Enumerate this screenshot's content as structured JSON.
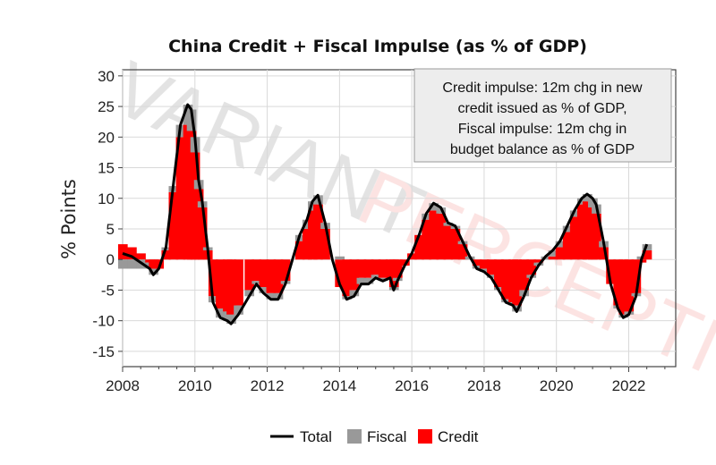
{
  "chart_data": {
    "type": "area",
    "title": "China Credit + Fiscal Impulse (as % of GDP)",
    "ylabel": "% Points",
    "xlabel": "",
    "xlim": [
      2008,
      2023.3
    ],
    "ylim": [
      -17.5,
      31
    ],
    "x_ticks": [
      2008,
      2010,
      2012,
      2014,
      2016,
      2018,
      2020,
      2022
    ],
    "x_tick_labels": [
      "2008",
      "2010",
      "2012",
      "2014",
      "2016",
      "2018",
      "2020",
      "2022"
    ],
    "y_ticks": [
      30,
      25,
      20,
      15,
      10,
      5,
      0,
      -5,
      -10,
      -15
    ],
    "y_tick_labels": [
      "30",
      "25",
      "20",
      "15",
      "10",
      "5",
      "0",
      "-5",
      "-10",
      "-15"
    ],
    "grid": true,
    "legend_position": "bottom",
    "annotation": {
      "lines": [
        "Credit impulse: 12m chg in new",
        "credit issued as % of GDP,",
        "Fiscal impulse: 12m chg in",
        "budget balance as % of GDP"
      ],
      "position": "top-right"
    },
    "legend": [
      {
        "name": "Total",
        "style": "line",
        "color": "#000000"
      },
      {
        "name": "Fiscal",
        "style": "area",
        "color": "#999999"
      },
      {
        "name": "Credit",
        "style": "area",
        "color": "#ff0000"
      }
    ],
    "series": [
      {
        "name": "Total",
        "type": "line",
        "color": "#000000",
        "x": [
          2008.0,
          2008.25,
          2008.5,
          2008.75,
          2008.85,
          2009.0,
          2009.2,
          2009.4,
          2009.6,
          2009.8,
          2009.9,
          2010.0,
          2010.1,
          2010.2,
          2010.35,
          2010.5,
          2010.7,
          2010.9,
          2011.0,
          2011.2,
          2011.5,
          2011.7,
          2011.9,
          2012.1,
          2012.3,
          2012.5,
          2012.7,
          2012.9,
          2013.1,
          2013.25,
          2013.4,
          2013.6,
          2013.8,
          2014.0,
          2014.2,
          2014.4,
          2014.6,
          2014.8,
          2015.0,
          2015.2,
          2015.4,
          2015.5,
          2015.6,
          2015.8,
          2016.0,
          2016.2,
          2016.4,
          2016.6,
          2016.8,
          2017.0,
          2017.2,
          2017.4,
          2017.6,
          2017.8,
          2018.0,
          2018.2,
          2018.4,
          2018.6,
          2018.8,
          2018.9,
          2019.1,
          2019.3,
          2019.5,
          2019.7,
          2019.9,
          2020.1,
          2020.3,
          2020.5,
          2020.7,
          2020.85,
          2021.0,
          2021.1,
          2021.3,
          2021.5,
          2021.7,
          2021.85,
          2022.0,
          2022.2,
          2022.35,
          2022.5
        ],
        "y": [
          1.0,
          0.5,
          -0.5,
          -1.5,
          -2.5,
          -1.5,
          2.0,
          12.0,
          22.0,
          25.3,
          24.5,
          20.0,
          13.0,
          9.5,
          2.0,
          -7.0,
          -9.5,
          -10.0,
          -10.5,
          -9.0,
          -6.0,
          -4.0,
          -5.5,
          -6.5,
          -6.5,
          -4.0,
          0.0,
          4.0,
          6.5,
          9.5,
          10.5,
          6.0,
          0.0,
          -4.0,
          -6.5,
          -6.0,
          -4.0,
          -4.0,
          -3.0,
          -3.5,
          -3.0,
          -5.0,
          -3.5,
          -1.0,
          1.0,
          4.0,
          7.5,
          9.2,
          8.5,
          6.0,
          5.5,
          3.0,
          0.5,
          -1.5,
          -2.0,
          -3.0,
          -5.0,
          -7.0,
          -7.5,
          -8.5,
          -6.0,
          -3.0,
          -1.0,
          0.5,
          1.5,
          3.0,
          5.5,
          8.0,
          10.0,
          10.7,
          10.0,
          9.0,
          3.0,
          -4.0,
          -8.0,
          -9.5,
          -9.0,
          -6.0,
          0.0,
          2.5
        ]
      },
      {
        "name": "Credit",
        "type": "area",
        "color": "#ff0000",
        "x": [
          2008.0,
          2008.25,
          2008.5,
          2008.75,
          2008.85,
          2009.0,
          2009.2,
          2009.4,
          2009.6,
          2009.8,
          2009.9,
          2010.0,
          2010.1,
          2010.2,
          2010.35,
          2010.5,
          2010.7,
          2010.9,
          2011.0,
          2011.2,
          2011.5,
          2011.7,
          2011.9,
          2012.1,
          2012.3,
          2012.5,
          2012.7,
          2012.9,
          2013.1,
          2013.25,
          2013.4,
          2013.6,
          2013.8,
          2014.0,
          2014.2,
          2014.4,
          2014.6,
          2014.8,
          2015.0,
          2015.2,
          2015.4,
          2015.5,
          2015.6,
          2015.8,
          2016.0,
          2016.2,
          2016.4,
          2016.6,
          2016.8,
          2017.0,
          2017.2,
          2017.4,
          2017.6,
          2017.8,
          2018.0,
          2018.2,
          2018.4,
          2018.6,
          2018.8,
          2018.9,
          2019.1,
          2019.3,
          2019.5,
          2019.7,
          2019.9,
          2020.1,
          2020.3,
          2020.5,
          2020.7,
          2020.85,
          2021.0,
          2021.1,
          2021.3,
          2021.5,
          2021.7,
          2021.85,
          2022.0,
          2022.2,
          2022.35,
          2022.5
        ],
        "y": [
          2.5,
          2.0,
          1.0,
          -0.5,
          -1.5,
          -1.5,
          1.5,
          11.0,
          20.0,
          22.0,
          21.0,
          17.5,
          11.5,
          8.5,
          1.5,
          -6.0,
          -8.0,
          -8.5,
          -9.0,
          -7.5,
          -5.0,
          -3.5,
          -4.5,
          -5.5,
          -5.5,
          -3.5,
          0.0,
          3.0,
          5.0,
          8.0,
          9.0,
          5.0,
          0.0,
          -4.5,
          -6.0,
          -5.0,
          -3.0,
          -3.0,
          -2.5,
          -3.0,
          -3.0,
          -4.5,
          -3.0,
          -1.0,
          1.0,
          4.0,
          6.5,
          8.0,
          7.5,
          5.5,
          5.0,
          2.5,
          0.0,
          -1.0,
          -1.5,
          -2.5,
          -4.5,
          -6.5,
          -7.0,
          -7.5,
          -5.0,
          -2.5,
          -0.5,
          0.0,
          0.5,
          2.0,
          4.5,
          7.0,
          9.0,
          9.5,
          8.5,
          7.5,
          2.0,
          -4.0,
          -7.5,
          -9.0,
          -8.5,
          -5.5,
          -0.5,
          1.5
        ]
      },
      {
        "name": "Fiscal",
        "type": "area",
        "color": "#999999",
        "x": [
          2008.0,
          2008.25,
          2008.5,
          2008.75,
          2008.85,
          2009.0,
          2009.2,
          2009.4,
          2009.6,
          2009.8,
          2009.9,
          2010.0,
          2010.1,
          2010.2,
          2010.35,
          2010.5,
          2010.7,
          2010.9,
          2011.0,
          2011.2,
          2011.5,
          2011.7,
          2011.9,
          2012.1,
          2012.3,
          2012.5,
          2012.7,
          2012.9,
          2013.1,
          2013.25,
          2013.4,
          2013.6,
          2013.8,
          2014.0,
          2014.2,
          2014.4,
          2014.6,
          2014.8,
          2015.0,
          2015.2,
          2015.4,
          2015.5,
          2015.6,
          2015.8,
          2016.0,
          2016.2,
          2016.4,
          2016.6,
          2016.8,
          2017.0,
          2017.2,
          2017.4,
          2017.6,
          2017.8,
          2018.0,
          2018.2,
          2018.4,
          2018.6,
          2018.8,
          2018.9,
          2019.1,
          2019.3,
          2019.5,
          2019.7,
          2019.9,
          2020.1,
          2020.3,
          2020.5,
          2020.7,
          2020.85,
          2021.0,
          2021.1,
          2021.3,
          2021.5,
          2021.7,
          2021.85,
          2022.0,
          2022.2,
          2022.35,
          2022.5
        ],
        "y": [
          -1.5,
          -1.5,
          -1.5,
          -1.0,
          -1.0,
          0.0,
          0.5,
          1.0,
          2.0,
          3.3,
          3.5,
          2.5,
          1.5,
          1.0,
          0.5,
          -1.0,
          -1.5,
          -1.5,
          -1.5,
          -1.5,
          -1.0,
          -0.5,
          -1.0,
          -1.0,
          -1.0,
          -0.5,
          0.0,
          1.0,
          1.5,
          1.5,
          1.5,
          1.0,
          0.0,
          0.5,
          -0.5,
          -1.0,
          -1.0,
          -1.0,
          -0.5,
          -0.5,
          0.0,
          -0.5,
          -0.5,
          0.0,
          0.0,
          0.0,
          1.0,
          1.2,
          1.0,
          0.5,
          0.5,
          0.5,
          0.5,
          -0.5,
          -0.5,
          -0.5,
          -0.5,
          -0.5,
          -0.5,
          -1.0,
          -1.0,
          -0.5,
          -0.5,
          0.5,
          1.0,
          1.0,
          1.0,
          1.0,
          1.0,
          1.2,
          1.5,
          1.5,
          1.0,
          0.0,
          -0.5,
          -0.5,
          -0.5,
          -0.5,
          0.5,
          1.0
        ]
      }
    ]
  },
  "watermark": {
    "line1": "VARIANT",
    "line2": "PERCEPTION",
    "colors": {
      "dark": "#222222",
      "brand": "#e8251f"
    }
  }
}
